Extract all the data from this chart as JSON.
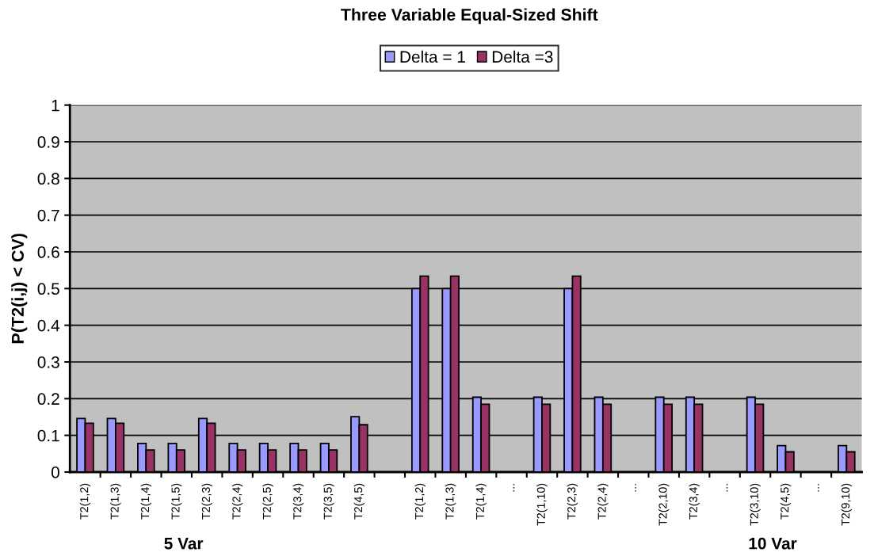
{
  "chart_data": {
    "type": "bar",
    "title": "Three Variable Equal-Sized Shift",
    "ylabel": "P(T2(i,j) < CV)",
    "categories": [
      "T2(1,2)",
      "T2(1,3)",
      "T2(1,4)",
      "T2(1,5)",
      "T2(2,3)",
      "T2(2,4)",
      "T2(2,5)",
      "T2(3,4)",
      "T2(3,5)",
      "T2(4,5)",
      null,
      "T2(1,2)",
      "T2(1,3)",
      "T2(1,4)",
      "...",
      "T2(1,10)",
      "T2(2,3)",
      "T2(2,4)",
      "...",
      "T2(2,10)",
      "T2(3,4)",
      "...",
      "T2(3,10)",
      "T2(4,5)",
      "...",
      "T2(9,10)"
    ],
    "series": [
      {
        "name": "Delta = 1",
        "color": "#9999ff",
        "values": [
          0.146,
          0.146,
          0.078,
          0.078,
          0.146,
          0.078,
          0.078,
          0.078,
          0.078,
          0.151,
          null,
          0.5,
          0.5,
          0.204,
          null,
          0.204,
          0.5,
          0.204,
          null,
          0.204,
          0.204,
          null,
          0.204,
          0.072,
          null,
          0.072
        ]
      },
      {
        "name": "Delta =3",
        "color": "#993366",
        "values": [
          0.133,
          0.133,
          0.06,
          0.06,
          0.133,
          0.06,
          0.06,
          0.06,
          0.06,
          0.129,
          null,
          0.534,
          0.534,
          0.185,
          null,
          0.185,
          0.534,
          0.185,
          null,
          0.185,
          0.185,
          null,
          0.185,
          0.055,
          null,
          0.055
        ]
      }
    ],
    "ylim": [
      0,
      1
    ],
    "yticks": [
      0,
      0.1,
      0.2,
      0.3,
      0.4,
      0.5,
      0.6,
      0.7,
      0.8,
      0.9,
      1
    ],
    "grid": "y",
    "legend": "top",
    "annotations": [
      "5 Var",
      "10 Var"
    ]
  }
}
